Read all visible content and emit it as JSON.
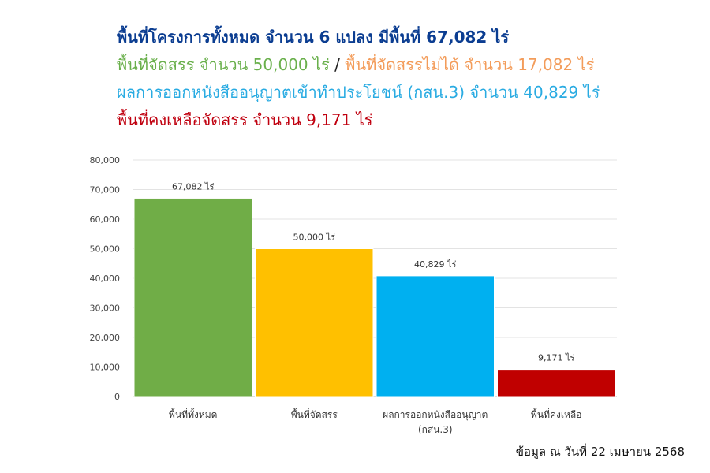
{
  "header": {
    "line1": {
      "text": "พื้นที่โครงการทั้งหมด จำนวน 6 แปลง มีพื้นที่ 67,082 ไร่",
      "color": "#0b3d91"
    },
    "line2a": {
      "text": "พื้นที่จัดสรร จำนวน 50,000 ไร่",
      "color": "#6ab04c"
    },
    "line2_sep": " / ",
    "line2b": {
      "text": "พื้นที่จัดสรรไม่ได้ จำนวน 17,082 ไร่",
      "color": "#f39c5a"
    },
    "line3": {
      "text": "ผลการออกหนังสืออนุญาตเข้าทำประโยชน์ (กสน.3) จำนวน 40,829 ไร่",
      "color": "#29abe2"
    },
    "line4": {
      "text": "พื้นที่คงเหลือจัดสรร  จำนวน 9,171 ไร่",
      "color": "#c0000f"
    }
  },
  "chart_data": {
    "type": "bar",
    "categories": [
      [
        "พื้นที่ทั้งหมด"
      ],
      [
        "พื้นที่จัดสรร"
      ],
      [
        "ผลการออกหนังสืออนุญาต",
        "(กสน.3)"
      ],
      [
        "พื้นที่คงเหลือ"
      ]
    ],
    "values": [
      67082,
      50000,
      40829,
      9171
    ],
    "data_labels": [
      "67,082 ไร่",
      "50,000 ไร่",
      "40,829 ไร่",
      "9,171 ไร่"
    ],
    "colors": [
      "#70ad47",
      "#ffc000",
      "#00b0f0",
      "#c00000"
    ],
    "ylim": [
      0,
      80000
    ],
    "yticks": [
      0,
      10000,
      20000,
      30000,
      40000,
      50000,
      60000,
      70000,
      80000
    ],
    "ytick_labels": [
      "0",
      "10,000",
      "20,000",
      "30,000",
      "40,000",
      "50,000",
      "60,000",
      "70,000",
      "80,000"
    ],
    "grid": true,
    "xlabel": "",
    "ylabel": ""
  },
  "footer": "ข้อมูล ณ วันที่ 22 เมษายน 2568"
}
